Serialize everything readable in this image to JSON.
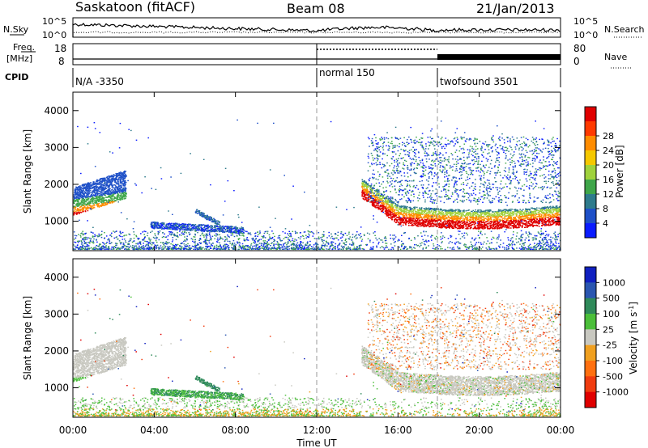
{
  "header": {
    "station": "Saskatoon (fitACF)",
    "beam": "Beam 08",
    "date": "21/Jan/2013"
  },
  "panels": {
    "nsky_label": "N.Sky",
    "nsearch_label": "N.Search",
    "nsky_ticks": [
      "10^5",
      "10^0"
    ],
    "nsearch_ticks": [
      "10^5",
      "10^0"
    ],
    "freq_label": "Freq.",
    "freq_unit": "[MHz]",
    "freq_ticks": [
      "18",
      "8"
    ],
    "nave_label": "Nave",
    "nave_ticks": [
      "80",
      "0"
    ],
    "cpid_label": "CPID",
    "cpid_segments": [
      {
        "label": "N/A -3350",
        "start_hour": 0
      },
      {
        "label": "normal 150",
        "start_hour": 12
      },
      {
        "label": "twofsound 3501",
        "start_hour": 18
      }
    ]
  },
  "chart_data": [
    {
      "type": "heatmap",
      "name": "power",
      "ylabel": "Slant Range [km]",
      "xlabel": "Time UT",
      "xlim": [
        0,
        24
      ],
      "ylim": [
        200,
        4500
      ],
      "x_ticks": [
        "00:00",
        "04:00",
        "08:00",
        "12:00",
        "16:00",
        "20:00",
        "00:00"
      ],
      "y_ticks": [
        1000,
        2000,
        3000,
        4000
      ],
      "colorbar": {
        "label": "Power [dB]",
        "ticks": [
          "4",
          "8",
          "12",
          "16",
          "20",
          "24",
          "28"
        ],
        "colors": [
          "#0a1cff",
          "#1e50c8",
          "#2e7b8c",
          "#3fa64a",
          "#a0d23c",
          "#f5c800",
          "#ff8c00",
          "#ff3a00",
          "#e00000"
        ]
      }
    },
    {
      "type": "heatmap",
      "name": "velocity",
      "ylabel": "Slant Range [km]",
      "xlabel": "Time UT",
      "xlim": [
        0,
        24
      ],
      "ylim": [
        200,
        4500
      ],
      "x_ticks": [
        "00:00",
        "04:00",
        "08:00",
        "12:00",
        "16:00",
        "20:00",
        "00:00"
      ],
      "y_ticks": [
        1000,
        2000,
        3000,
        4000
      ],
      "colorbar": {
        "label": "Velocity [m s^-1]",
        "ticks": [
          "1000",
          "500",
          "100",
          "25",
          "-25",
          "-100",
          "-500",
          "-1000"
        ],
        "colors": [
          "#1020c0",
          "#2a56b0",
          "#2f8a5a",
          "#4bbf3a",
          "#c8c8c0",
          "#f0a020",
          "#ff7010",
          "#f03c10",
          "#e00000"
        ]
      }
    }
  ],
  "xaxis_title": "Time UT"
}
